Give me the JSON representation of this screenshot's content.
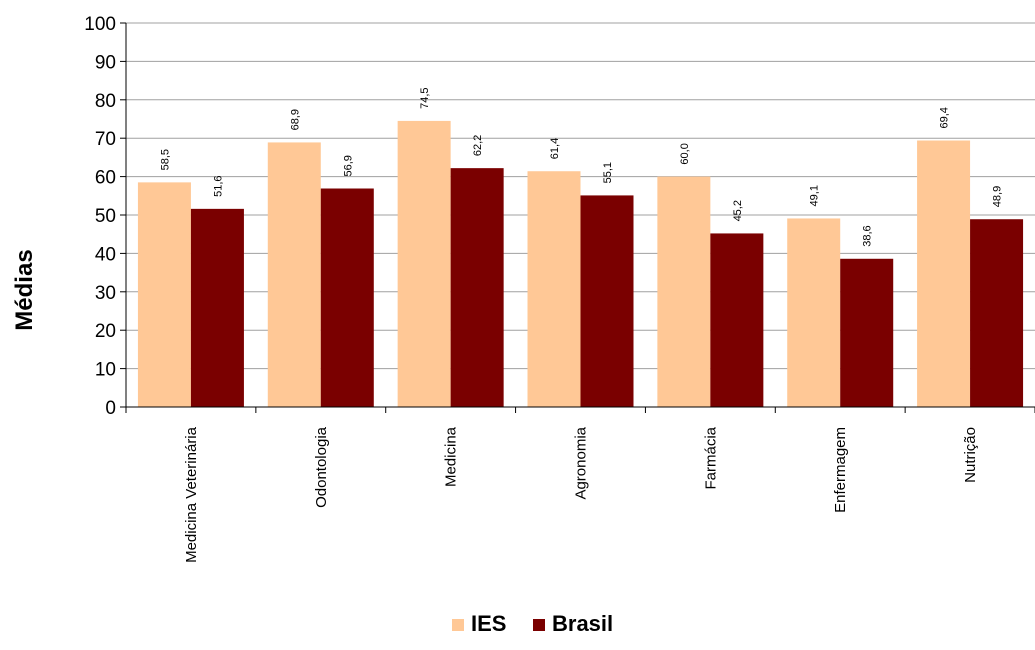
{
  "chart_data": {
    "type": "bar",
    "title": "",
    "xlabel": "",
    "ylabel": "Médias",
    "ylim": [
      0,
      100
    ],
    "yticks": [
      0,
      10,
      20,
      30,
      40,
      50,
      60,
      70,
      80,
      90,
      100
    ],
    "grid": true,
    "legend_position": "bottom",
    "categories": [
      "Medicina Veterinária",
      "Odontologia",
      "Medicina",
      "Agronomia",
      "Farmácia",
      "Enfermagem",
      "Nutrição"
    ],
    "series": [
      {
        "name": "IES",
        "color": "#ffc896",
        "values": [
          58.5,
          68.9,
          74.5,
          61.4,
          60.0,
          49.1,
          69.4
        ],
        "labels": [
          "58,5",
          "68,9",
          "74,5",
          "61,4",
          "60,0",
          "49,1",
          "69,4"
        ]
      },
      {
        "name": "Brasil",
        "color": "#7a0000",
        "values": [
          51.6,
          56.9,
          62.2,
          55.1,
          45.2,
          38.6,
          48.9
        ],
        "labels": [
          "51,6",
          "56,9",
          "62,2",
          "55,1",
          "45,2",
          "38,6",
          "48,9"
        ]
      }
    ]
  }
}
